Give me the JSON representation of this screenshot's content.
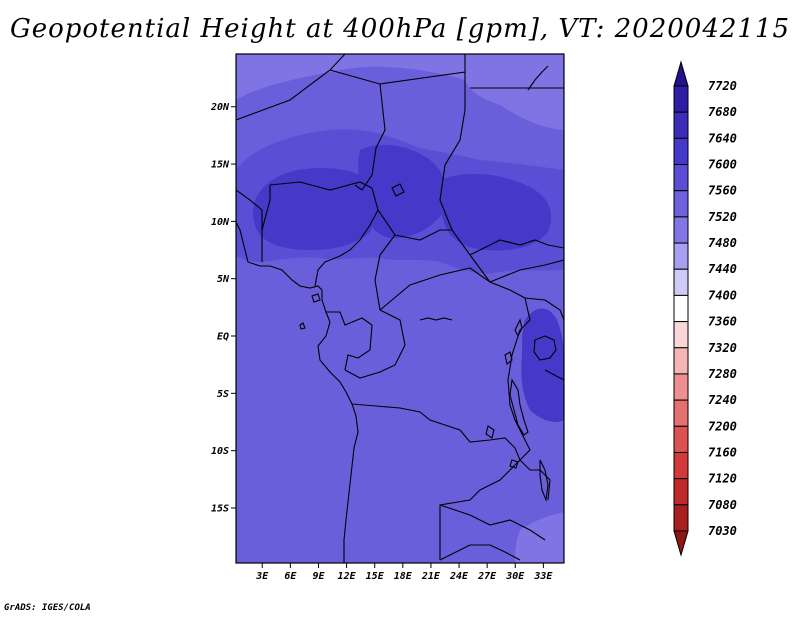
{
  "title": "Geopotential Height at 400hPa [gpm], VT: 2020042115",
  "footer": "GrADS: IGES/COLA",
  "map": {
    "lat_labels": [
      "20N",
      "15N",
      "10N",
      "5N",
      "EQ",
      "5S",
      "10S",
      "15S"
    ],
    "lat_values": [
      20,
      15,
      10,
      5,
      0,
      -5,
      -10,
      -15
    ],
    "lon_labels": [
      "3E",
      "6E",
      "9E",
      "12E",
      "15E",
      "18E",
      "21E",
      "24E",
      "27E",
      "30E",
      "33E"
    ],
    "lon_values": [
      3,
      6,
      9,
      12,
      15,
      18,
      21,
      24,
      27,
      30,
      33
    ],
    "extent": {
      "lon": [
        0.2,
        35.2
      ],
      "lat": [
        -19.8,
        24.6
      ]
    }
  },
  "colorbar": {
    "labels": [
      "7720",
      "7680",
      "7640",
      "7600",
      "7560",
      "7520",
      "7480",
      "7440",
      "7400",
      "7360",
      "7320",
      "7280",
      "7240",
      "7200",
      "7160",
      "7120",
      "7080",
      "7030"
    ],
    "colors": [
      "#24118f",
      "#2e1ea6",
      "#3a2eb8",
      "#4539c9",
      "#5a4fd4",
      "#6d62dc",
      "#8176e4",
      "#a79ff0",
      "#cfcbf8",
      "#ffffff",
      "#fbd6d6",
      "#f6b5b5",
      "#ee9090",
      "#e47070",
      "#dc5252",
      "#d23a3a",
      "#c02a2a",
      "#a71f1f",
      "#8e1616"
    ],
    "colors_note": "top triangle, then bins top-to-bottom, then bottom triangle"
  },
  "field_colors": {
    "c7520": "#6a5fdb",
    "c7560": "#5a4fd4",
    "c7600": "#4539c9",
    "c7480": "#7f74e3",
    "border": "#000000"
  }
}
